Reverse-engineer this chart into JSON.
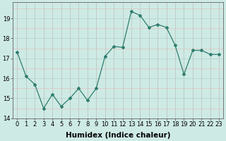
{
  "x": [
    0,
    1,
    2,
    3,
    4,
    5,
    6,
    7,
    8,
    9,
    10,
    11,
    12,
    13,
    14,
    15,
    16,
    17,
    18,
    19,
    20,
    21,
    22,
    23
  ],
  "y": [
    17.3,
    16.1,
    15.7,
    14.5,
    15.2,
    14.6,
    15.0,
    15.5,
    14.9,
    15.5,
    17.1,
    17.6,
    17.55,
    19.35,
    19.15,
    18.55,
    18.7,
    18.55,
    17.65,
    16.2,
    17.4,
    17.4,
    17.2,
    17.2
  ],
  "line_color": "#2e7d6e",
  "marker": "D",
  "marker_size": 2,
  "bg_color": "#ceeae4",
  "grid_color_major": "#aaccc6",
  "grid_color_pink": "#e8b8b8",
  "xlabel": "Humidex (Indice chaleur)",
  "ylim": [
    14,
    19.8
  ],
  "xlim": [
    -0.5,
    23.5
  ],
  "yticks": [
    14,
    15,
    16,
    17,
    18,
    19
  ],
  "xticks": [
    0,
    1,
    2,
    3,
    4,
    5,
    6,
    7,
    8,
    9,
    10,
    11,
    12,
    13,
    14,
    15,
    16,
    17,
    18,
    19,
    20,
    21,
    22,
    23
  ],
  "tick_fontsize": 6,
  "xlabel_fontsize": 7.5,
  "xlabel_fontweight": "bold"
}
